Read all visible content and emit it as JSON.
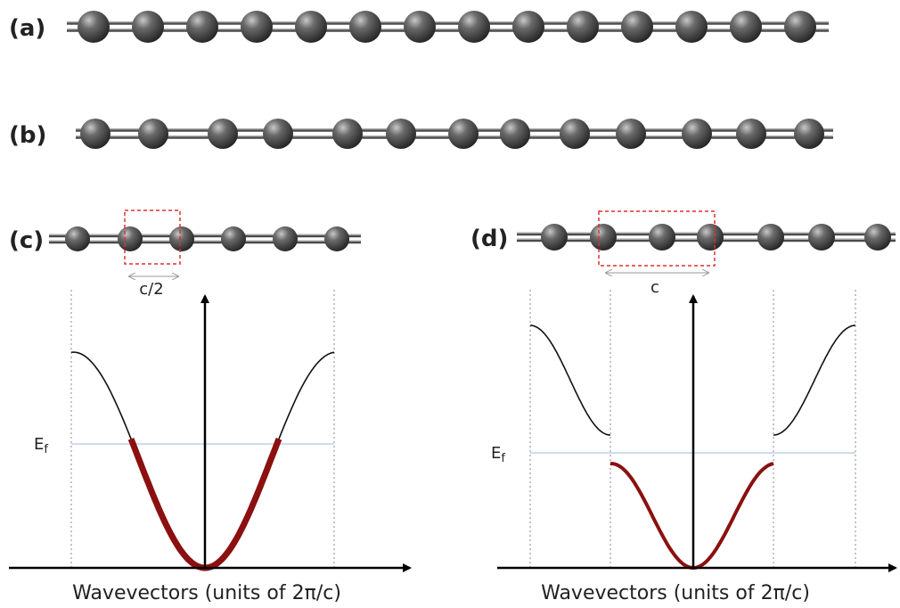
{
  "panels": {
    "a": {
      "label": "(a)"
    },
    "b": {
      "label": "(b)"
    },
    "c": {
      "label": "(c)",
      "spacing_label": "c/2",
      "fermi_label": {
        "symbol": "E",
        "subscript": "f"
      },
      "x_label": "Wavevectors (units of 2π/c)"
    },
    "d": {
      "label": "(d)",
      "spacing_label": "c",
      "fermi_label": {
        "symbol": "E",
        "subscript": "f"
      },
      "x_label": "Wavevectors (units of 2π/c)"
    }
  }
}
